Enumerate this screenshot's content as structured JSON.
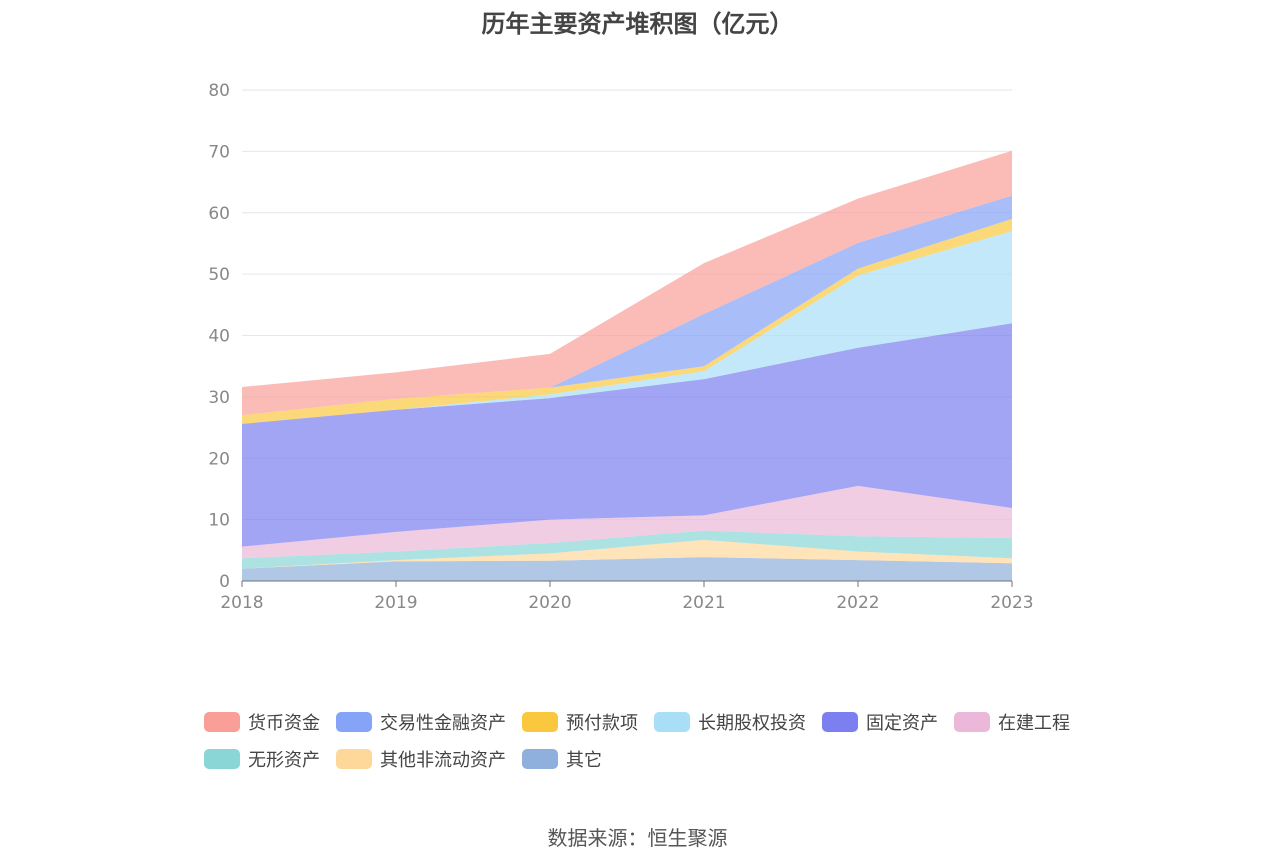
{
  "chart_data": {
    "type": "area",
    "stacked": true,
    "title": "历年主要资产堆积图（亿元）",
    "x": [
      "2018",
      "2019",
      "2020",
      "2021",
      "2022",
      "2023"
    ],
    "ylim": [
      0,
      80
    ],
    "yticks": [
      "0",
      "10",
      "20",
      "30",
      "40",
      "50",
      "60",
      "70",
      "80"
    ],
    "grid": true,
    "legend_position": "bottom",
    "series": [
      {
        "name": "其它",
        "color": "#8fb0dc",
        "values": [
          2.0,
          3.2,
          3.3,
          3.9,
          3.4,
          2.9
        ]
      },
      {
        "name": "其他非流动资产",
        "color": "#fdd89a",
        "values": [
          0.0,
          0.2,
          1.2,
          2.8,
          1.4,
          0.8
        ]
      },
      {
        "name": "无形资产",
        "color": "#8ad6d6",
        "values": [
          1.7,
          1.4,
          1.7,
          1.5,
          2.5,
          3.3
        ]
      },
      {
        "name": "在建工程",
        "color": "#ebb8d9",
        "values": [
          1.9,
          3.2,
          3.8,
          2.5,
          8.2,
          4.9
        ]
      },
      {
        "name": "固定资产",
        "color": "#7b7ff0",
        "values": [
          20.0,
          19.9,
          19.8,
          22.2,
          22.5,
          30.1
        ]
      },
      {
        "name": "长期股权投资",
        "color": "#a9def7",
        "values": [
          0.0,
          0.0,
          0.6,
          1.3,
          11.8,
          15.0
        ]
      },
      {
        "name": "预付款项",
        "color": "#fac83f",
        "values": [
          1.4,
          1.8,
          1.1,
          0.8,
          1.1,
          2.0
        ]
      },
      {
        "name": "交易性金融资产",
        "color": "#85a3f7",
        "values": [
          0.0,
          0.0,
          0.0,
          8.5,
          4.2,
          3.8
        ]
      },
      {
        "name": "货币资金",
        "color": "#fa9f98",
        "values": [
          4.6,
          4.3,
          5.5,
          8.3,
          7.2,
          7.3
        ]
      }
    ]
  },
  "legend_rows": [
    [
      {
        "label": "货币资金",
        "color": "#fa9f98"
      },
      {
        "label": "交易性金融资产",
        "color": "#85a3f7"
      },
      {
        "label": "预付款项",
        "color": "#fac83f"
      },
      {
        "label": "长期股权投资",
        "color": "#a9def7"
      },
      {
        "label": "固定资产",
        "color": "#7b7ff0"
      },
      {
        "label": "在建工程",
        "color": "#ebb8d9"
      }
    ],
    [
      {
        "label": "无形资产",
        "color": "#8ad6d6"
      },
      {
        "label": "其他非流动资产",
        "color": "#fdd89a"
      },
      {
        "label": "其它",
        "color": "#8fb0dc"
      }
    ]
  ],
  "source": "数据来源：恒生聚源"
}
